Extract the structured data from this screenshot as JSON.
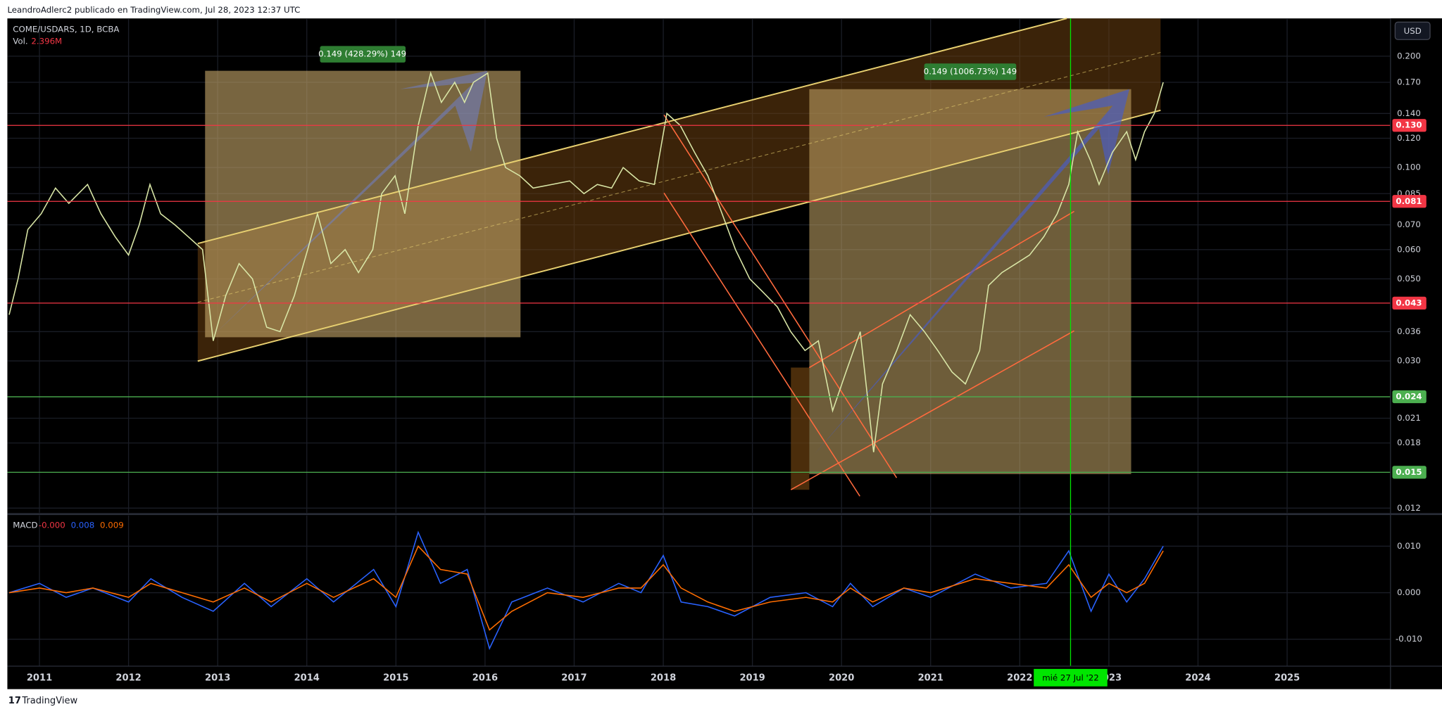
{
  "header": {
    "text": "LeandroAdlerc2 publicado en TradingView.com, Jul 28, 2023 12:37 UTC"
  },
  "footer": {
    "brand": "TradingView"
  },
  "chart_data": [
    {
      "type": "line",
      "symbol": "COME/USDARS, 1D, BCBA",
      "volume_label": "Vol.",
      "volume_value": "2.396M",
      "currency": "USD",
      "log_scale": true,
      "grid": true,
      "color": "#d9e6a6",
      "xlim": [
        2010.64,
        2026.16
      ],
      "xticks": [
        2011,
        2012,
        2013,
        2014,
        2015,
        2016,
        2017,
        2018,
        2019,
        2020,
        2021,
        2022,
        2023,
        2024,
        2025
      ],
      "ylim": [
        0.01166,
        0.253
      ],
      "yticks": [
        {
          "value": 0.012,
          "label": "0.012"
        },
        {
          "value": 0.018,
          "label": "0.018"
        },
        {
          "value": 0.021,
          "label": "0.021"
        },
        {
          "value": 0.03,
          "label": "0.030"
        },
        {
          "value": 0.036,
          "label": "0.036"
        },
        {
          "value": 0.05,
          "label": "0.050"
        },
        {
          "value": 0.06,
          "label": "0.060"
        },
        {
          "value": 0.07,
          "label": "0.070"
        },
        {
          "value": 0.085,
          "label": "0.085"
        },
        {
          "value": 0.1,
          "label": "0.100"
        },
        {
          "value": 0.12,
          "label": "0.120"
        },
        {
          "value": 0.14,
          "label": "0.140"
        },
        {
          "value": 0.17,
          "label": "0.170"
        },
        {
          "value": 0.2,
          "label": "0.200"
        }
      ],
      "levels": [
        {
          "value": 0.13,
          "label": "0.130",
          "color": "#f23645"
        },
        {
          "value": 0.081,
          "label": "0.081",
          "color": "#f23645"
        },
        {
          "value": 0.043,
          "label": "0.043",
          "color": "#f23645"
        },
        {
          "value": 0.024,
          "label": "0.024",
          "color": "#4caf50"
        },
        {
          "value": 0.015,
          "label": "0.015",
          "color": "#4caf50"
        }
      ],
      "annotations": [
        {
          "text": "0.149 (428.29%) 149"
        },
        {
          "text": "0.149 (1006.73%) 149"
        }
      ],
      "crosshair": {
        "x": 2022.57,
        "label": "mié 27 Jul '22",
        "color": "#00e600"
      },
      "x": [
        2010.66,
        2010.76,
        2010.87,
        2011.02,
        2011.18,
        2011.33,
        2011.54,
        2011.69,
        2011.85,
        2012.0,
        2012.12,
        2012.24,
        2012.36,
        2012.52,
        2012.67,
        2012.83,
        2012.95,
        2013.09,
        2013.24,
        2013.39,
        2013.55,
        2013.7,
        2013.86,
        2014.01,
        2014.12,
        2014.27,
        2014.43,
        2014.58,
        2014.74,
        2014.84,
        2014.99,
        2015.1,
        2015.25,
        2015.39,
        2015.51,
        2015.66,
        2015.77,
        2015.87,
        2016.03,
        2016.13,
        2016.23,
        2016.39,
        2016.54,
        2016.75,
        2016.95,
        2017.11,
        2017.26,
        2017.42,
        2017.55,
        2017.73,
        2017.9,
        2018.04,
        2018.19,
        2018.35,
        2018.5,
        2018.66,
        2018.81,
        2018.97,
        2019.12,
        2019.28,
        2019.43,
        2019.59,
        2019.74,
        2019.9,
        2020.05,
        2020.21,
        2020.36,
        2020.46,
        2020.62,
        2020.77,
        2020.93,
        2021.08,
        2021.24,
        2021.39,
        2021.55,
        2021.65,
        2021.8,
        2021.96,
        2022.11,
        2022.27,
        2022.42,
        2022.55,
        2022.65,
        2022.79,
        2022.89,
        2023.04,
        2023.2,
        2023.3,
        2023.4,
        2023.51,
        2023.61
      ],
      "series": [
        {
          "color": "#d9e6a6",
          "values": [
            0.04,
            0.05,
            0.068,
            0.075,
            0.088,
            0.08,
            0.09,
            0.075,
            0.065,
            0.058,
            0.07,
            0.09,
            0.075,
            0.07,
            0.065,
            0.06,
            0.034,
            0.045,
            0.055,
            0.05,
            0.037,
            0.036,
            0.045,
            0.06,
            0.075,
            0.055,
            0.06,
            0.052,
            0.06,
            0.085,
            0.095,
            0.075,
            0.13,
            0.18,
            0.15,
            0.17,
            0.15,
            0.17,
            0.18,
            0.12,
            0.1,
            0.095,
            0.088,
            0.09,
            0.092,
            0.085,
            0.09,
            0.088,
            0.1,
            0.092,
            0.09,
            0.14,
            0.13,
            0.11,
            0.095,
            0.075,
            0.06,
            0.05,
            0.046,
            0.042,
            0.036,
            0.032,
            0.034,
            0.022,
            0.028,
            0.036,
            0.017,
            0.026,
            0.032,
            0.04,
            0.036,
            0.032,
            0.028,
            0.026,
            0.032,
            0.048,
            0.052,
            0.055,
            0.058,
            0.065,
            0.075,
            0.09,
            0.125,
            0.105,
            0.09,
            0.11,
            0.125,
            0.105,
            0.125,
            0.14,
            0.17
          ]
        }
      ]
    },
    {
      "type": "line",
      "title": "MACD",
      "grid": true,
      "readout": [
        {
          "value": 0,
          "label": "-0.000",
          "color": "#f23645"
        },
        {
          "value": 0.008,
          "label": "0.008",
          "color": "#2962ff"
        },
        {
          "value": 0.009,
          "label": "0.009",
          "color": "#ff6d00"
        }
      ],
      "ylim": [
        -0.0158,
        0.0166
      ],
      "yticks": [
        {
          "value": -0.01,
          "label": "-0.010"
        },
        {
          "value": 0,
          "label": "0.000"
        },
        {
          "value": 0.01,
          "label": "0.010"
        }
      ],
      "x": [
        2010.66,
        2011.0,
        2011.3,
        2011.6,
        2012.0,
        2012.25,
        2012.6,
        2012.95,
        2013.3,
        2013.6,
        2014.0,
        2014.3,
        2014.75,
        2015.0,
        2015.25,
        2015.5,
        2015.8,
        2016.05,
        2016.3,
        2016.7,
        2017.1,
        2017.5,
        2017.75,
        2018.0,
        2018.2,
        2018.5,
        2018.8,
        2019.2,
        2019.6,
        2019.9,
        2020.1,
        2020.35,
        2020.7,
        2021.0,
        2021.5,
        2021.9,
        2022.3,
        2022.55,
        2022.8,
        2023.0,
        2023.2,
        2023.4,
        2023.61
      ],
      "series": [
        {
          "color": "#2962ff",
          "values": [
            0,
            0.002,
            -0.001,
            0.001,
            -0.002,
            0.003,
            -0.001,
            -0.004,
            0.002,
            -0.003,
            0.003,
            -0.002,
            0.005,
            -0.003,
            0.013,
            0.002,
            0.005,
            -0.012,
            -0.002,
            0.001,
            -0.002,
            0.002,
            0,
            0.008,
            -0.002,
            -0.003,
            -0.005,
            -0.001,
            0,
            -0.003,
            0.002,
            -0.003,
            0.001,
            -0.001,
            0.004,
            0.001,
            0.002,
            0.009,
            -0.004,
            0.004,
            -0.002,
            0.003,
            0.01
          ]
        },
        {
          "color": "#ff6d00",
          "values": [
            0,
            0.001,
            0,
            0.001,
            -0.001,
            0.002,
            0,
            -0.002,
            0.001,
            -0.002,
            0.002,
            -0.001,
            0.003,
            -0.001,
            0.01,
            0.005,
            0.004,
            -0.008,
            -0.004,
            0,
            -0.001,
            0.001,
            0.001,
            0.006,
            0.001,
            -0.002,
            -0.004,
            -0.002,
            -0.001,
            -0.002,
            0.001,
            -0.002,
            0.001,
            0,
            0.003,
            0.002,
            0.001,
            0.006,
            -0.001,
            0.002,
            0,
            0.002,
            0.009
          ]
        }
      ]
    }
  ]
}
